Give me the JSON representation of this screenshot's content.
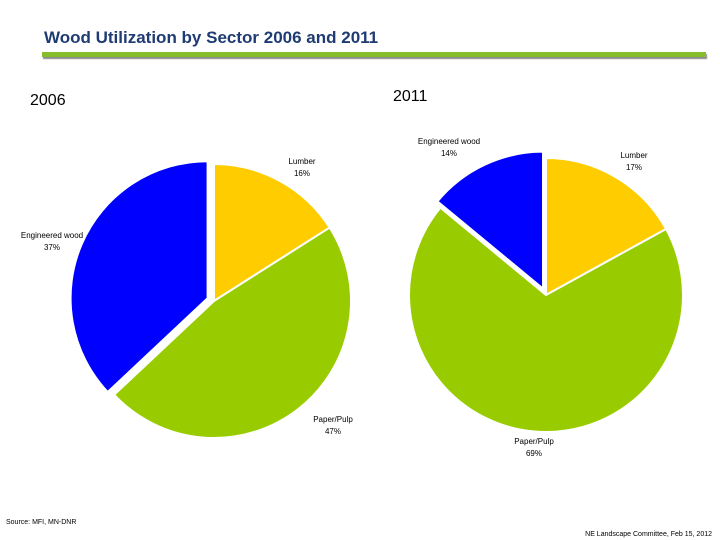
{
  "title": "Wood Utilization by Sector 2006 and 2011",
  "source": "Source: MFI, MN-DNR",
  "footnote": "NE Landscape Committee, Feb 15, 2012",
  "colors": {
    "lumber": "#ffcc00",
    "paper_pulp": "#99cc00",
    "engineered_wood": "#0000ff",
    "title": "#1f3b73",
    "rule": "#86bd2c"
  },
  "chart_data": [
    {
      "type": "pie",
      "title": "2006",
      "categories": [
        "Lumber",
        "Paper/Pulp",
        "Engineered wood"
      ],
      "values": [
        16,
        47,
        37
      ],
      "labels": [
        "16%",
        "47%",
        "37%"
      ],
      "exploded": "Engineered wood"
    },
    {
      "type": "pie",
      "title": "2011",
      "categories": [
        "Lumber",
        "Paper/Pulp",
        "Engineered wood"
      ],
      "values": [
        17,
        69,
        14
      ],
      "labels": [
        "17%",
        "69%",
        "14%"
      ],
      "exploded": "Engineered wood"
    }
  ]
}
